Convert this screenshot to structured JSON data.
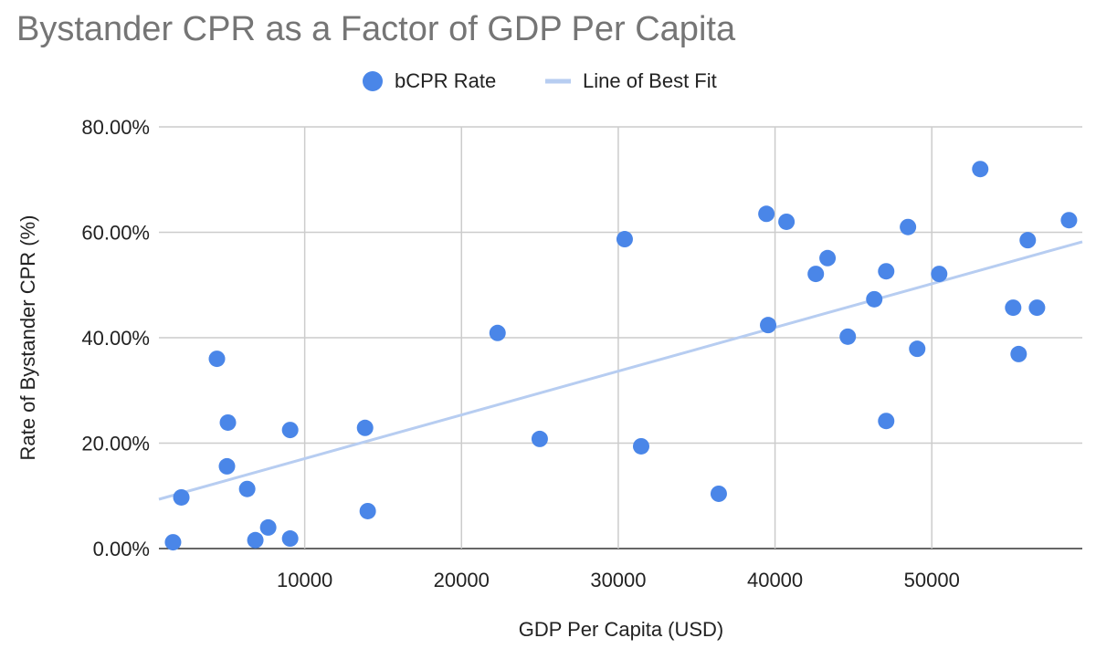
{
  "chart_data": {
    "type": "scatter",
    "title": "Bystander CPR as a Factor of GDP Per Capita",
    "x_label": "GDP Per Capita (USD)",
    "y_label": "Rate of Bystander CPR (%)",
    "legend_position": "top",
    "grid": true,
    "xlim": [
      700,
      59600
    ],
    "ylim": [
      0,
      80
    ],
    "xticks": [
      10000,
      20000,
      30000,
      40000,
      50000
    ],
    "yticks": [
      {
        "value": 0,
        "label": "0.00%"
      },
      {
        "value": 20,
        "label": "20.00%"
      },
      {
        "value": 40,
        "label": "40.00%"
      },
      {
        "value": 60,
        "label": "60.00%"
      },
      {
        "value": 80,
        "label": "80.00%"
      }
    ],
    "series": [
      {
        "name": "bCPR Rate",
        "color": "#4a86e8",
        "x": [
          1600,
          2130,
          4400,
          5100,
          5040,
          6330,
          6850,
          7670,
          9070,
          9070,
          13850,
          14020,
          22300,
          24990,
          30410,
          31460,
          36410,
          39450,
          39560,
          40730,
          42600,
          43350,
          44640,
          46330,
          47090,
          47090,
          48480,
          49070,
          50470,
          53090,
          55190,
          55540,
          56120,
          56710,
          58750
        ],
        "values": [
          1.2,
          9.7,
          36.0,
          23.9,
          15.6,
          11.3,
          1.6,
          4.0,
          22.5,
          1.9,
          22.9,
          7.1,
          40.9,
          20.8,
          58.7,
          19.4,
          10.4,
          63.5,
          42.4,
          62.0,
          52.1,
          55.1,
          40.2,
          47.3,
          52.6,
          24.2,
          61.0,
          37.9,
          52.1,
          72.0,
          45.7,
          36.9,
          58.5,
          45.7,
          62.3
        ]
      }
    ],
    "trendline": {
      "name": "Line of Best Fit",
      "color": "#b7cdf1",
      "x": [
        700,
        59600
      ],
      "values": [
        9.35,
        58.2
      ]
    }
  }
}
